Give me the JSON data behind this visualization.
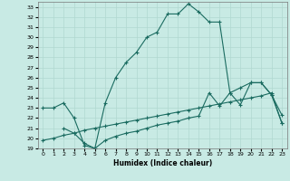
{
  "title": "",
  "xlabel": "Humidex (Indice chaleur)",
  "ylabel": "",
  "xlim": [
    -0.5,
    23.5
  ],
  "ylim": [
    19,
    33.5
  ],
  "yticks": [
    19,
    20,
    21,
    22,
    23,
    24,
    25,
    26,
    27,
    28,
    29,
    30,
    31,
    32,
    33
  ],
  "xticks": [
    0,
    1,
    2,
    3,
    4,
    5,
    6,
    7,
    8,
    9,
    10,
    11,
    12,
    13,
    14,
    15,
    16,
    17,
    18,
    19,
    20,
    21,
    22,
    23
  ],
  "bg_color": "#c8eae4",
  "line_color": "#1a6b60",
  "grid_color": "#b0d8d0",
  "line1_x": [
    0,
    1,
    2,
    3,
    4,
    5,
    6,
    7,
    8,
    9,
    10,
    11,
    12,
    13,
    14,
    15,
    16,
    17,
    18,
    19,
    20,
    21,
    22,
    23
  ],
  "line1_y": [
    23.0,
    23.0,
    23.5,
    22.0,
    19.3,
    19.0,
    23.5,
    26.0,
    27.5,
    28.5,
    30.0,
    30.5,
    32.3,
    32.3,
    33.3,
    32.5,
    31.5,
    31.5,
    24.5,
    23.3,
    25.5,
    25.5,
    24.3,
    22.3
  ],
  "line2_x": [
    2,
    3,
    4,
    5,
    6,
    7,
    8,
    9,
    10,
    11,
    12,
    13,
    14,
    15,
    16,
    17,
    18,
    19,
    20,
    21,
    22,
    23
  ],
  "line2_y": [
    21.0,
    20.5,
    19.5,
    19.0,
    19.8,
    20.2,
    20.5,
    20.7,
    21.0,
    21.3,
    21.5,
    21.7,
    22.0,
    22.2,
    24.5,
    23.2,
    24.5,
    25.0,
    25.5,
    25.5,
    24.3,
    21.5
  ],
  "line3_x": [
    0,
    1,
    2,
    3,
    4,
    5,
    6,
    7,
    8,
    9,
    10,
    11,
    12,
    13,
    14,
    15,
    16,
    17,
    18,
    19,
    20,
    21,
    22,
    23
  ],
  "line3_y": [
    19.8,
    20.0,
    20.3,
    20.5,
    20.8,
    21.0,
    21.2,
    21.4,
    21.6,
    21.8,
    22.0,
    22.2,
    22.4,
    22.6,
    22.8,
    23.0,
    23.2,
    23.4,
    23.6,
    23.8,
    24.0,
    24.2,
    24.5,
    21.5
  ]
}
